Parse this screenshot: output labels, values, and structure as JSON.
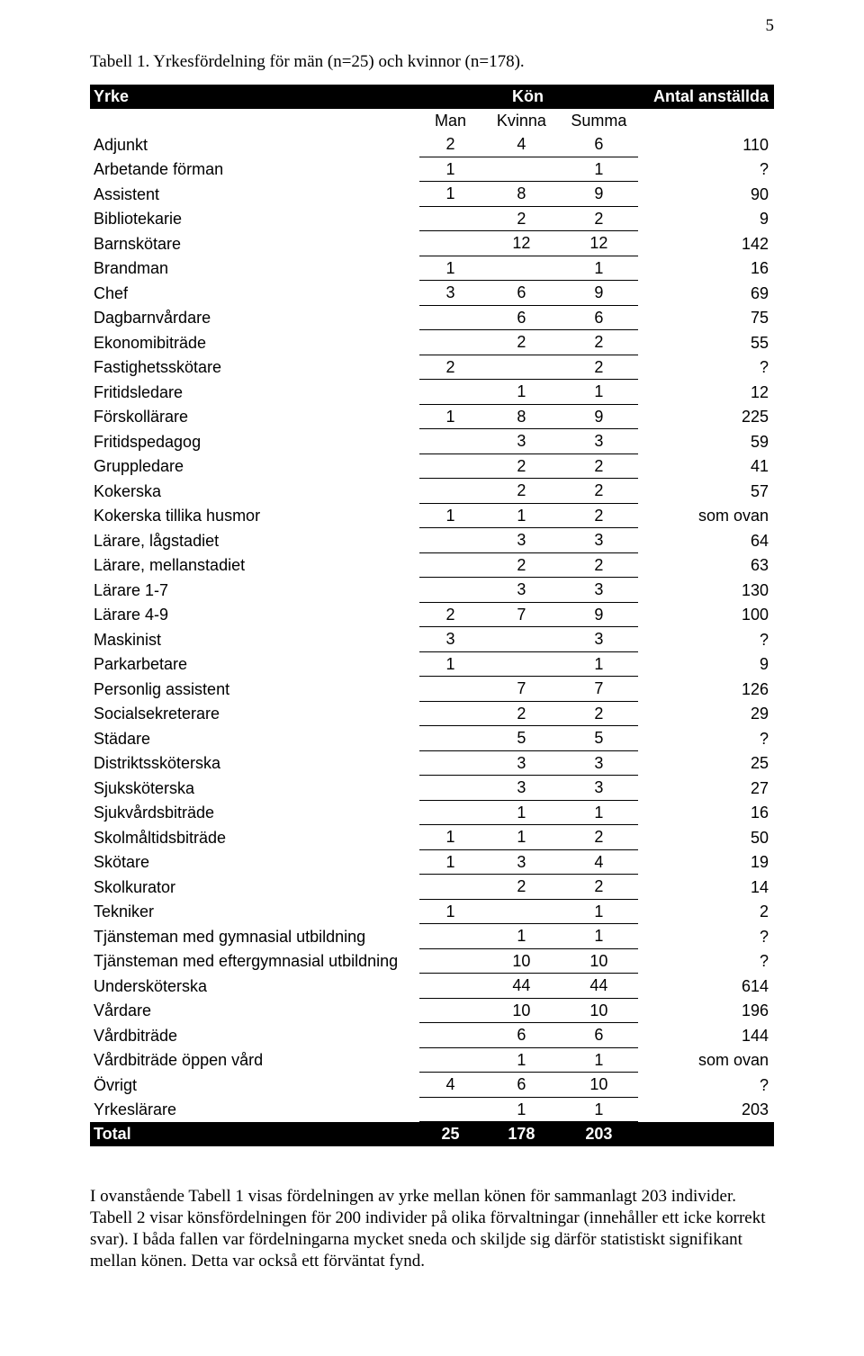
{
  "pageNumber": "5",
  "caption": "Tabell 1. Yrkesfördelning för män (n=25) och kvinnor (n=178).",
  "table": {
    "headers": {
      "yrke": "Yrke",
      "kon": "Kön",
      "antal": "Antal anställda",
      "man": "Man",
      "kvinna": "Kvinna",
      "summa": "Summa"
    },
    "rows": [
      {
        "yrke": "Adjunkt",
        "man": "2",
        "kvinna": "4",
        "summa": "6",
        "antal": "110"
      },
      {
        "yrke": "Arbetande förman",
        "man": "1",
        "kvinna": "",
        "summa": "1",
        "antal": "?"
      },
      {
        "yrke": "Assistent",
        "man": "1",
        "kvinna": "8",
        "summa": "9",
        "antal": "90"
      },
      {
        "yrke": "Bibliotekarie",
        "man": "",
        "kvinna": "2",
        "summa": "2",
        "antal": "9"
      },
      {
        "yrke": "Barnskötare",
        "man": "",
        "kvinna": "12",
        "summa": "12",
        "antal": "142"
      },
      {
        "yrke": "Brandman",
        "man": "1",
        "kvinna": "",
        "summa": "1",
        "antal": "16"
      },
      {
        "yrke": "Chef",
        "man": "3",
        "kvinna": "6",
        "summa": "9",
        "antal": "69"
      },
      {
        "yrke": "Dagbarnvårdare",
        "man": "",
        "kvinna": "6",
        "summa": "6",
        "antal": "75"
      },
      {
        "yrke": "Ekonomibiträde",
        "man": "",
        "kvinna": "2",
        "summa": "2",
        "antal": "55"
      },
      {
        "yrke": "Fastighetsskötare",
        "man": "2",
        "kvinna": "",
        "summa": "2",
        "antal": "?"
      },
      {
        "yrke": "Fritidsledare",
        "man": "",
        "kvinna": "1",
        "summa": "1",
        "antal": "12"
      },
      {
        "yrke": "Förskollärare",
        "man": "1",
        "kvinna": "8",
        "summa": "9",
        "antal": "225"
      },
      {
        "yrke": "Fritidspedagog",
        "man": "",
        "kvinna": "3",
        "summa": "3",
        "antal": "59"
      },
      {
        "yrke": "Gruppledare",
        "man": "",
        "kvinna": "2",
        "summa": "2",
        "antal": "41"
      },
      {
        "yrke": "Kokerska",
        "man": "",
        "kvinna": "2",
        "summa": "2",
        "antal": "57"
      },
      {
        "yrke": "Kokerska tillika husmor",
        "man": "1",
        "kvinna": "1",
        "summa": "2",
        "antal": "som ovan"
      },
      {
        "yrke": "Lärare, lågstadiet",
        "man": "",
        "kvinna": "3",
        "summa": "3",
        "antal": "64"
      },
      {
        "yrke": "Lärare, mellanstadiet",
        "man": "",
        "kvinna": "2",
        "summa": "2",
        "antal": "63"
      },
      {
        "yrke": "Lärare 1-7",
        "man": "",
        "kvinna": "3",
        "summa": "3",
        "antal": "130"
      },
      {
        "yrke": "Lärare 4-9",
        "man": "2",
        "kvinna": "7",
        "summa": "9",
        "antal": "100"
      },
      {
        "yrke": "Maskinist",
        "man": "3",
        "kvinna": "",
        "summa": "3",
        "antal": "?"
      },
      {
        "yrke": "Parkarbetare",
        "man": "1",
        "kvinna": "",
        "summa": "1",
        "antal": "9"
      },
      {
        "yrke": "Personlig assistent",
        "man": "",
        "kvinna": "7",
        "summa": "7",
        "antal": "126"
      },
      {
        "yrke": "Socialsekreterare",
        "man": "",
        "kvinna": "2",
        "summa": "2",
        "antal": "29"
      },
      {
        "yrke": "Städare",
        "man": "",
        "kvinna": "5",
        "summa": "5",
        "antal": "?"
      },
      {
        "yrke": "Distriktssköterska",
        "man": "",
        "kvinna": "3",
        "summa": "3",
        "antal": "25"
      },
      {
        "yrke": "Sjuksköterska",
        "man": "",
        "kvinna": "3",
        "summa": "3",
        "antal": "27"
      },
      {
        "yrke": "Sjukvårdsbiträde",
        "man": "",
        "kvinna": "1",
        "summa": "1",
        "antal": "16"
      },
      {
        "yrke": "Skolmåltidsbiträde",
        "man": "1",
        "kvinna": "1",
        "summa": "2",
        "antal": "50"
      },
      {
        "yrke": "Skötare",
        "man": "1",
        "kvinna": "3",
        "summa": "4",
        "antal": "19"
      },
      {
        "yrke": "Skolkurator",
        "man": "",
        "kvinna": "2",
        "summa": "2",
        "antal": "14"
      },
      {
        "yrke": "Tekniker",
        "man": "1",
        "kvinna": "",
        "summa": "1",
        "antal": "2"
      },
      {
        "yrke": "Tjänsteman med gymnasial utbildning",
        "man": "",
        "kvinna": "1",
        "summa": "1",
        "antal": "?"
      },
      {
        "yrke": "Tjänsteman med eftergymnasial utbildning",
        "man": "",
        "kvinna": "10",
        "summa": "10",
        "antal": "?"
      },
      {
        "yrke": "Undersköterska",
        "man": "",
        "kvinna": "44",
        "summa": "44",
        "antal": "614"
      },
      {
        "yrke": "Vårdare",
        "man": "",
        "kvinna": "10",
        "summa": "10",
        "antal": "196"
      },
      {
        "yrke": "Vårdbiträde",
        "man": "",
        "kvinna": "6",
        "summa": "6",
        "antal": "144"
      },
      {
        "yrke": "Vårdbiträde öppen vård",
        "man": "",
        "kvinna": "1",
        "summa": "1",
        "antal": "som ovan"
      },
      {
        "yrke": "Övrigt",
        "man": "4",
        "kvinna": "6",
        "summa": "10",
        "antal": "?"
      },
      {
        "yrke": "Yrkeslärare",
        "man": "",
        "kvinna": "1",
        "summa": "1",
        "antal": "203"
      }
    ],
    "total": {
      "yrke": "Total",
      "man": "25",
      "kvinna": "178",
      "summa": "203",
      "antal": ""
    }
  },
  "bodyText": "I ovanstående Tabell 1 visas fördelningen av yrke mellan könen för sammanlagt 203 individer. Tabell 2 visar könsfördelningen för 200 individer på olika förvaltningar (innehåller ett icke korrekt svar). I båda fallen var fördelningarna mycket sneda och skiljde sig därför statistiskt signifikant mellan könen. Detta var också ett förväntat fynd."
}
